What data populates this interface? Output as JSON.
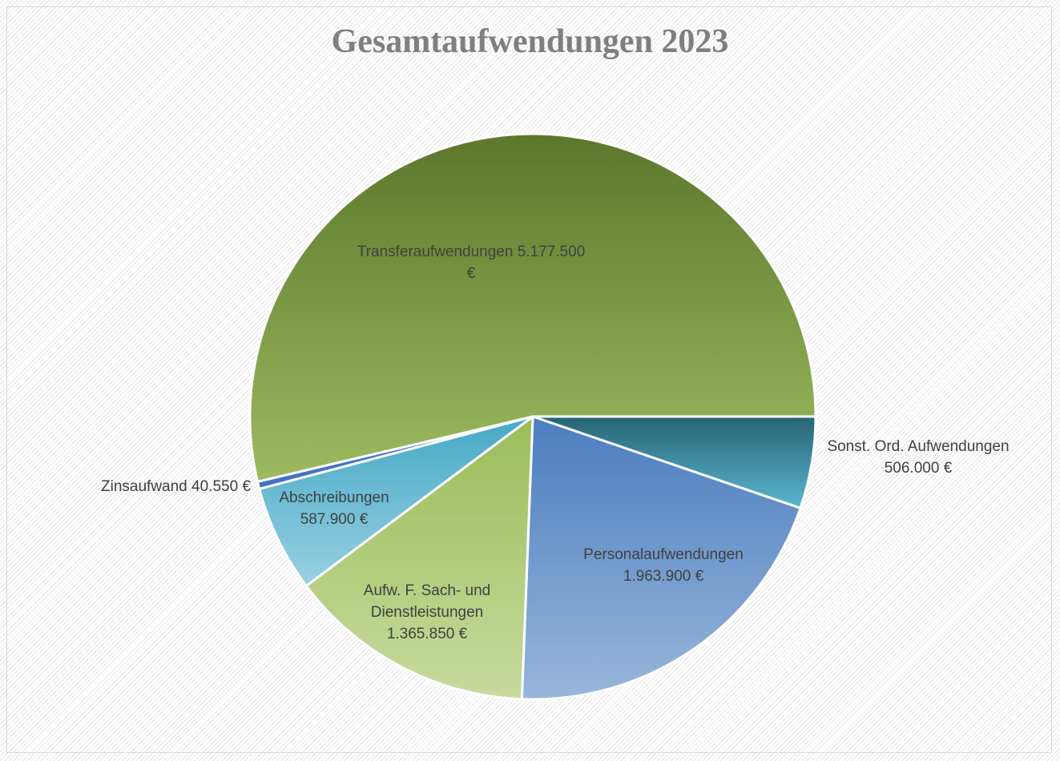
{
  "chart_data": {
    "type": "pie",
    "title": "Gesamtaufwendungen 2023",
    "categories": [
      "Sonst. Ord. Aufwendungen",
      "Personalaufwendungen",
      "Aufw. F. Sach- und Dienstleistungen",
      "Abschreibungen",
      "Zinsaufwand",
      "Transferaufwendungen"
    ],
    "values": [
      506000,
      1963900,
      1365850,
      587900,
      40550,
      5177500
    ],
    "value_labels": [
      "506.000 €",
      "1.963.900 €",
      "1.365.850 €",
      "587.900 €",
      "40.550 €",
      "5.177.500 €"
    ],
    "colors": [
      [
        "#256475",
        "#5bb6cf"
      ],
      [
        "#4b7dbf",
        "#98b6da"
      ],
      [
        "#9abd58",
        "#c8da9e"
      ],
      [
        "#45a9c6",
        "#98d0e2"
      ],
      [
        "#4472c4",
        "#4472c4"
      ],
      [
        "#5c772c",
        "#9cbb60"
      ]
    ],
    "start_angle": 90
  }
}
